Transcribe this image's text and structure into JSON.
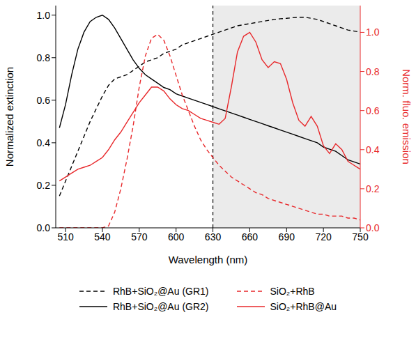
{
  "chart_data": {
    "type": "line",
    "x_label": "Wavelength (nm)",
    "y_label": "Normalized extinction",
    "y2_label": "Norm. fluo. emission",
    "legend": "bottom",
    "shaded_region": [
      630,
      750
    ],
    "x": [
      505,
      510,
      515,
      520,
      525,
      530,
      535,
      540,
      545,
      550,
      555,
      560,
      565,
      570,
      575,
      580,
      585,
      590,
      595,
      600,
      605,
      610,
      615,
      620,
      625,
      630,
      635,
      640,
      645,
      650,
      655,
      660,
      665,
      670,
      675,
      680,
      685,
      690,
      695,
      700,
      705,
      710,
      715,
      720,
      725,
      730,
      735,
      740,
      745,
      750
    ],
    "xlim": [
      502,
      750
    ],
    "xticks": [
      510,
      540,
      570,
      600,
      630,
      660,
      690,
      720,
      750
    ],
    "ylim": [
      0,
      1.045
    ],
    "yticks": [
      {
        "value": 0,
        "label": "0.0"
      },
      {
        "value": 0.2,
        "label": "0.2"
      },
      {
        "value": 0.4,
        "label": "0.4"
      },
      {
        "value": 0.6,
        "label": "0.6"
      },
      {
        "value": 0.8,
        "label": "0.8"
      },
      {
        "value": 1,
        "label": "1.0"
      }
    ],
    "y2lim": [
      0,
      1.137
    ],
    "y2ticks": [
      {
        "value": 0,
        "label": "0.0"
      },
      {
        "value": 0.2,
        "label": "0.2"
      },
      {
        "value": 0.4,
        "label": "0.4"
      },
      {
        "value": 0.6,
        "label": "0.6"
      },
      {
        "value": 0.8,
        "label": "0.8"
      },
      {
        "value": 1,
        "label": "1.0"
      }
    ],
    "series": [
      {
        "name": "RhB+SiO₂@Au (GR1)",
        "color": "#000000",
        "line_style": "dashed",
        "axis": "y",
        "values": [
          0.15,
          0.22,
          0.29,
          0.36,
          0.43,
          0.5,
          0.56,
          0.62,
          0.67,
          0.7,
          0.71,
          0.72,
          0.74,
          0.76,
          0.78,
          0.79,
          0.8,
          0.82,
          0.83,
          0.84,
          0.86,
          0.87,
          0.88,
          0.89,
          0.9,
          0.91,
          0.92,
          0.93,
          0.94,
          0.95,
          0.955,
          0.96,
          0.965,
          0.97,
          0.975,
          0.98,
          0.983,
          0.985,
          0.988,
          0.99,
          0.99,
          0.985,
          0.98,
          0.97,
          0.96,
          0.95,
          0.94,
          0.93,
          0.925,
          0.92
        ]
      },
      {
        "name": "RhB+SiO₂@Au (GR2)",
        "color": "#000000",
        "line_style": "solid",
        "axis": "y",
        "values": [
          0.47,
          0.58,
          0.72,
          0.84,
          0.92,
          0.97,
          0.99,
          1.0,
          0.98,
          0.94,
          0.89,
          0.84,
          0.79,
          0.75,
          0.72,
          0.7,
          0.68,
          0.66,
          0.65,
          0.63,
          0.62,
          0.61,
          0.6,
          0.59,
          0.58,
          0.57,
          0.56,
          0.55,
          0.54,
          0.53,
          0.52,
          0.51,
          0.5,
          0.49,
          0.48,
          0.47,
          0.46,
          0.45,
          0.44,
          0.43,
          0.42,
          0.41,
          0.4,
          0.38,
          0.37,
          0.36,
          0.34,
          0.32,
          0.31,
          0.3
        ]
      },
      {
        "name": "SiO₂+RhB",
        "color": "#e8282b",
        "line_style": "dashed",
        "axis": "y2",
        "values": [
          0,
          0,
          0,
          0,
          0,
          0,
          0,
          0,
          0.01,
          0.08,
          0.2,
          0.35,
          0.52,
          0.72,
          0.88,
          0.97,
          0.99,
          0.96,
          0.88,
          0.78,
          0.68,
          0.6,
          0.52,
          0.45,
          0.4,
          0.36,
          0.32,
          0.29,
          0.26,
          0.24,
          0.22,
          0.2,
          0.18,
          0.17,
          0.15,
          0.14,
          0.13,
          0.12,
          0.11,
          0.1,
          0.09,
          0.08,
          0.07,
          0.07,
          0.06,
          0.06,
          0.06,
          0.05,
          0.05,
          0.04
        ]
      },
      {
        "name": "SiO₂+RhB@Au",
        "color": "#e8282b",
        "line_style": "solid",
        "axis": "y2",
        "values": [
          0.24,
          0.26,
          0.28,
          0.3,
          0.31,
          0.32,
          0.34,
          0.36,
          0.4,
          0.45,
          0.49,
          0.54,
          0.59,
          0.64,
          0.68,
          0.72,
          0.72,
          0.7,
          0.66,
          0.63,
          0.61,
          0.6,
          0.58,
          0.56,
          0.55,
          0.54,
          0.53,
          0.56,
          0.72,
          0.9,
          0.98,
          1.0,
          0.95,
          0.86,
          0.82,
          0.85,
          0.84,
          0.76,
          0.64,
          0.55,
          0.52,
          0.57,
          0.52,
          0.42,
          0.38,
          0.43,
          0.4,
          0.34,
          0.32,
          0.3
        ]
      }
    ]
  }
}
